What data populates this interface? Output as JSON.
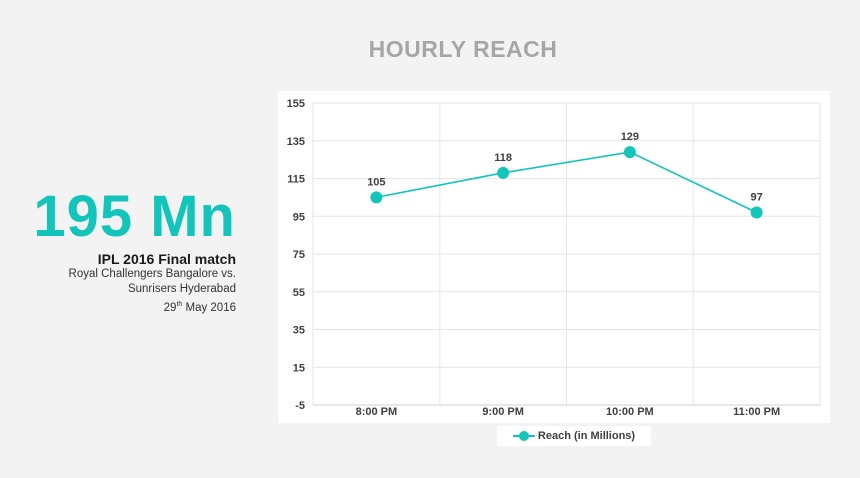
{
  "title": "HOURLY REACH",
  "highlight": {
    "value": "195 Mn",
    "subtitle": "IPL 2016 Final match",
    "line1": "Royal Challengers Bangalore vs.",
    "line2": "Sunrisers Hyderabad",
    "date_day": "29",
    "date_suffix": "th",
    "date_rest": " May 2016"
  },
  "colors": {
    "accent": "#12c4b9",
    "title": "#a6a6a6"
  },
  "chart_data": {
    "type": "line",
    "categories": [
      "8:00 PM",
      "9:00 PM",
      "10:00 PM",
      "11:00 PM"
    ],
    "series": [
      {
        "name": "Reach (in Millions)",
        "values": [
          105,
          118,
          129,
          97
        ]
      }
    ],
    "ylim": [
      -5,
      155
    ],
    "yticks": [
      155,
      135,
      115,
      95,
      75,
      55,
      35,
      15,
      -5
    ],
    "grid": true,
    "legend": "bottom"
  }
}
